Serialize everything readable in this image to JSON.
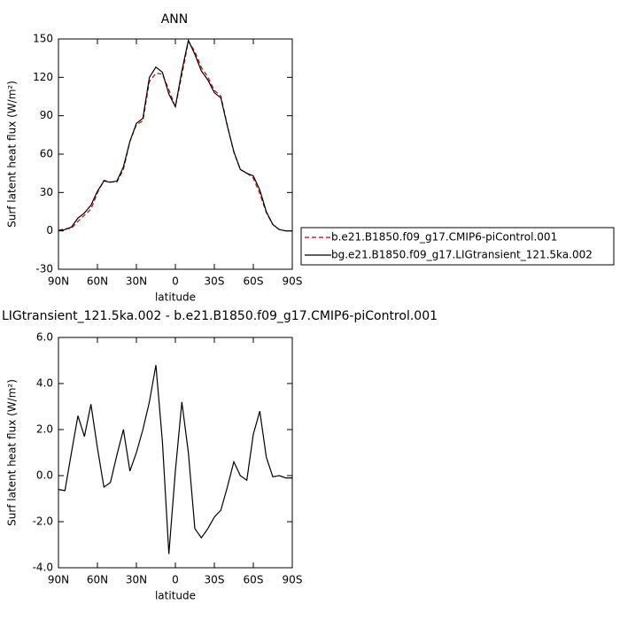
{
  "chart_data": [
    {
      "type": "line",
      "title": "ANN",
      "ylabel": "Surf latent heat flux (W/m²)",
      "xlabel": "latitude",
      "x": [
        90,
        85,
        80,
        75,
        70,
        65,
        60,
        55,
        50,
        45,
        40,
        35,
        30,
        25,
        20,
        15,
        10,
        5,
        0,
        -5,
        -10,
        -15,
        -20,
        -25,
        -30,
        -35,
        -40,
        -45,
        -50,
        -55,
        -60,
        -65,
        -70,
        -75,
        -80,
        -85,
        -90
      ],
      "xlim": [
        90,
        -90
      ],
      "xticks": [
        {
          "value": 90,
          "label": "90N"
        },
        {
          "value": 60,
          "label": "60N"
        },
        {
          "value": 30,
          "label": "30N"
        },
        0,
        {
          "value": -30,
          "label": "30S"
        },
        {
          "value": -60,
          "label": "60S"
        },
        {
          "value": -90,
          "label": "90S"
        }
      ],
      "ylim": [
        -30,
        150
      ],
      "yticks": [
        -30,
        0,
        30,
        60,
        90,
        120,
        150
      ],
      "legend": "right",
      "series": [
        {
          "name": "b.e21.B1850.f09_g17.CMIP6-piControl.001",
          "color": "#cc0000",
          "dash": "dashed",
          "values": [
            0.6,
            1.6,
            2,
            7.4,
            12.3,
            16.9,
            29.8,
            39.5,
            38.3,
            38.1,
            48,
            69.8,
            83,
            86,
            116.8,
            123.2,
            122.5,
            110.4,
            96.8,
            121.8,
            148,
            140.3,
            127.7,
            120.3,
            109.8,
            105.5,
            82.5,
            61.4,
            48,
            45.2,
            41.2,
            29.2,
            14.2,
            5,
            1,
            0,
            0.1
          ]
        },
        {
          "name": "bg.e21.B1850.f09_g17.LIGtransient_121.5ka.002",
          "color": "#000000",
          "dash": "solid",
          "values": [
            0,
            1,
            3,
            10,
            14,
            20,
            31,
            39,
            38,
            39,
            50,
            70,
            84,
            88,
            120,
            128,
            124,
            107,
            97,
            125,
            149,
            138,
            125,
            118,
            108,
            104,
            82,
            62,
            48,
            45,
            43,
            32,
            15,
            5,
            1,
            0,
            0
          ]
        }
      ]
    },
    {
      "type": "line",
      "title": "LIGtransient_121.5ka.002 - b.e21.B1850.f09_g17.CMIP6-piControl.001",
      "ylabel": "Surf latent heat flux (W/m²)",
      "xlabel": "latitude",
      "x": [
        90,
        85,
        80,
        75,
        70,
        65,
        60,
        55,
        50,
        45,
        40,
        35,
        30,
        25,
        20,
        15,
        10,
        5,
        0,
        -5,
        -10,
        -15,
        -20,
        -25,
        -30,
        -35,
        -40,
        -45,
        -50,
        -55,
        -60,
        -65,
        -70,
        -75,
        -80,
        -85,
        -90
      ],
      "xlim": [
        90,
        -90
      ],
      "xticks": [
        {
          "value": 90,
          "label": "90N"
        },
        {
          "value": 60,
          "label": "60N"
        },
        {
          "value": 30,
          "label": "30N"
        },
        0,
        {
          "value": -30,
          "label": "30S"
        },
        {
          "value": -60,
          "label": "60S"
        },
        {
          "value": -90,
          "label": "90S"
        }
      ],
      "ylim": [
        -4,
        6
      ],
      "yticks": [
        {
          "value": -4,
          "label": "-4.0"
        },
        {
          "value": -2,
          "label": "-2.0"
        },
        {
          "value": 0,
          "label": "0.0"
        },
        {
          "value": 2,
          "label": "2.0"
        },
        {
          "value": 4,
          "label": "4.0"
        },
        {
          "value": 6,
          "label": "6.0"
        }
      ],
      "series": [
        {
          "color": "#000000",
          "dash": "solid",
          "values": [
            -0.6,
            -0.65,
            1.0,
            2.6,
            1.7,
            3.1,
            1.2,
            -0.5,
            -0.3,
            0.9,
            2.0,
            0.2,
            1.0,
            2.0,
            3.2,
            4.8,
            1.5,
            -3.4,
            0.2,
            3.2,
            1.0,
            -2.3,
            -2.7,
            -2.3,
            -1.8,
            -1.5,
            -0.5,
            0.6,
            0.0,
            -0.2,
            1.8,
            2.8,
            0.8,
            -0.05,
            0.0,
            -0.1,
            -0.1
          ]
        }
      ]
    }
  ]
}
